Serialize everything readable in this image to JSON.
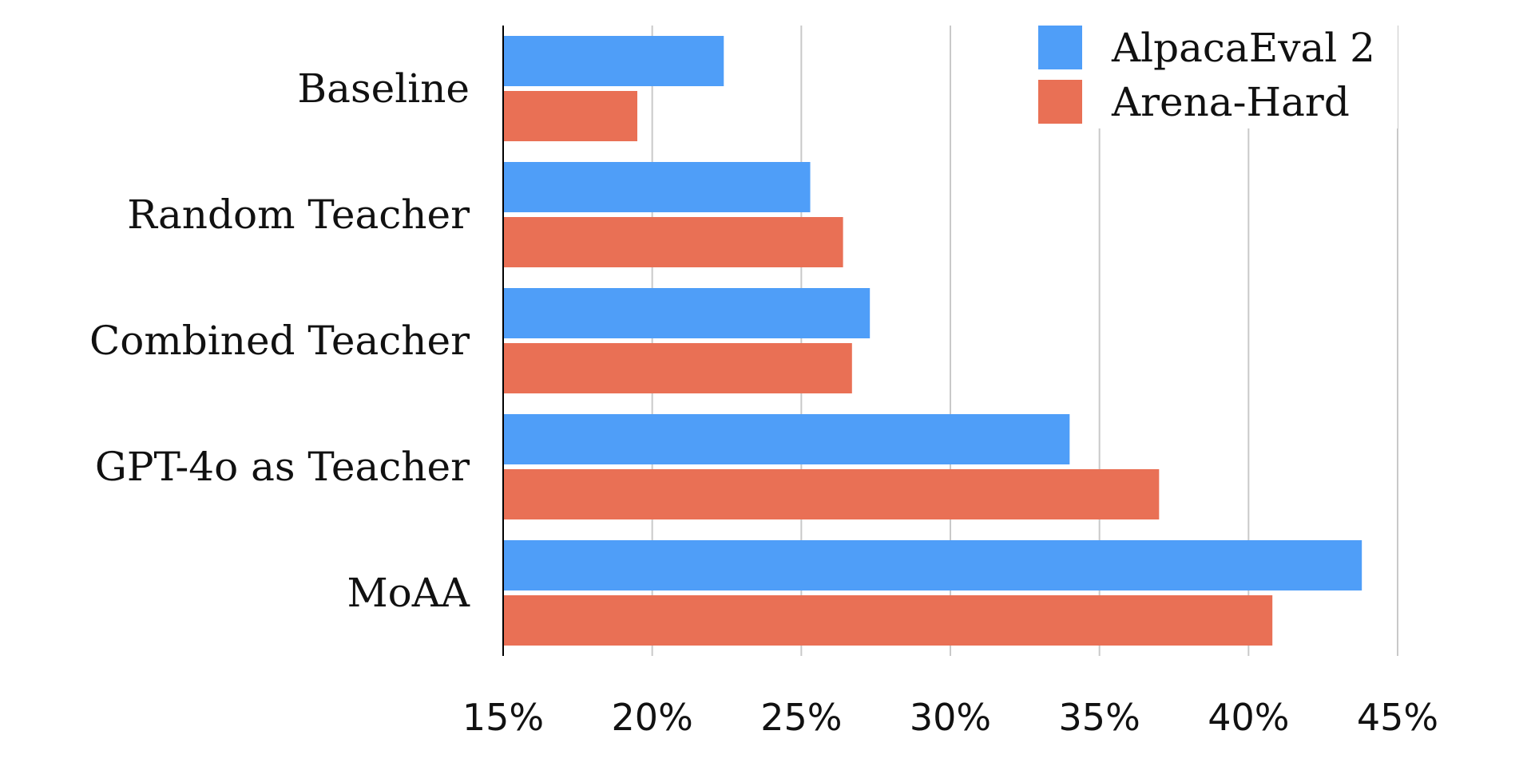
{
  "chart_data": {
    "type": "bar",
    "orientation": "horizontal",
    "categories": [
      "Baseline",
      "Random Teacher",
      "Combined Teacher",
      "GPT-4o as Teacher",
      "MoAA"
    ],
    "series": [
      {
        "name": "AlpacaEval 2",
        "color": "#4f9ef8",
        "values": [
          22.4,
          25.3,
          27.3,
          34.0,
          43.8
        ]
      },
      {
        "name": "Arena-Hard",
        "color": "#e97055",
        "values": [
          19.5,
          26.4,
          26.7,
          37.0,
          40.8
        ]
      }
    ],
    "xlim": [
      15,
      45
    ],
    "xticks": [
      15,
      20,
      25,
      30,
      35,
      40,
      45
    ],
    "tick_labels": [
      "15%",
      "20%",
      "25%",
      "30%",
      "35%",
      "40%",
      "45%"
    ],
    "grid": "vertical",
    "legend_position": "top-right",
    "title": "",
    "xlabel": "",
    "ylabel": ""
  }
}
